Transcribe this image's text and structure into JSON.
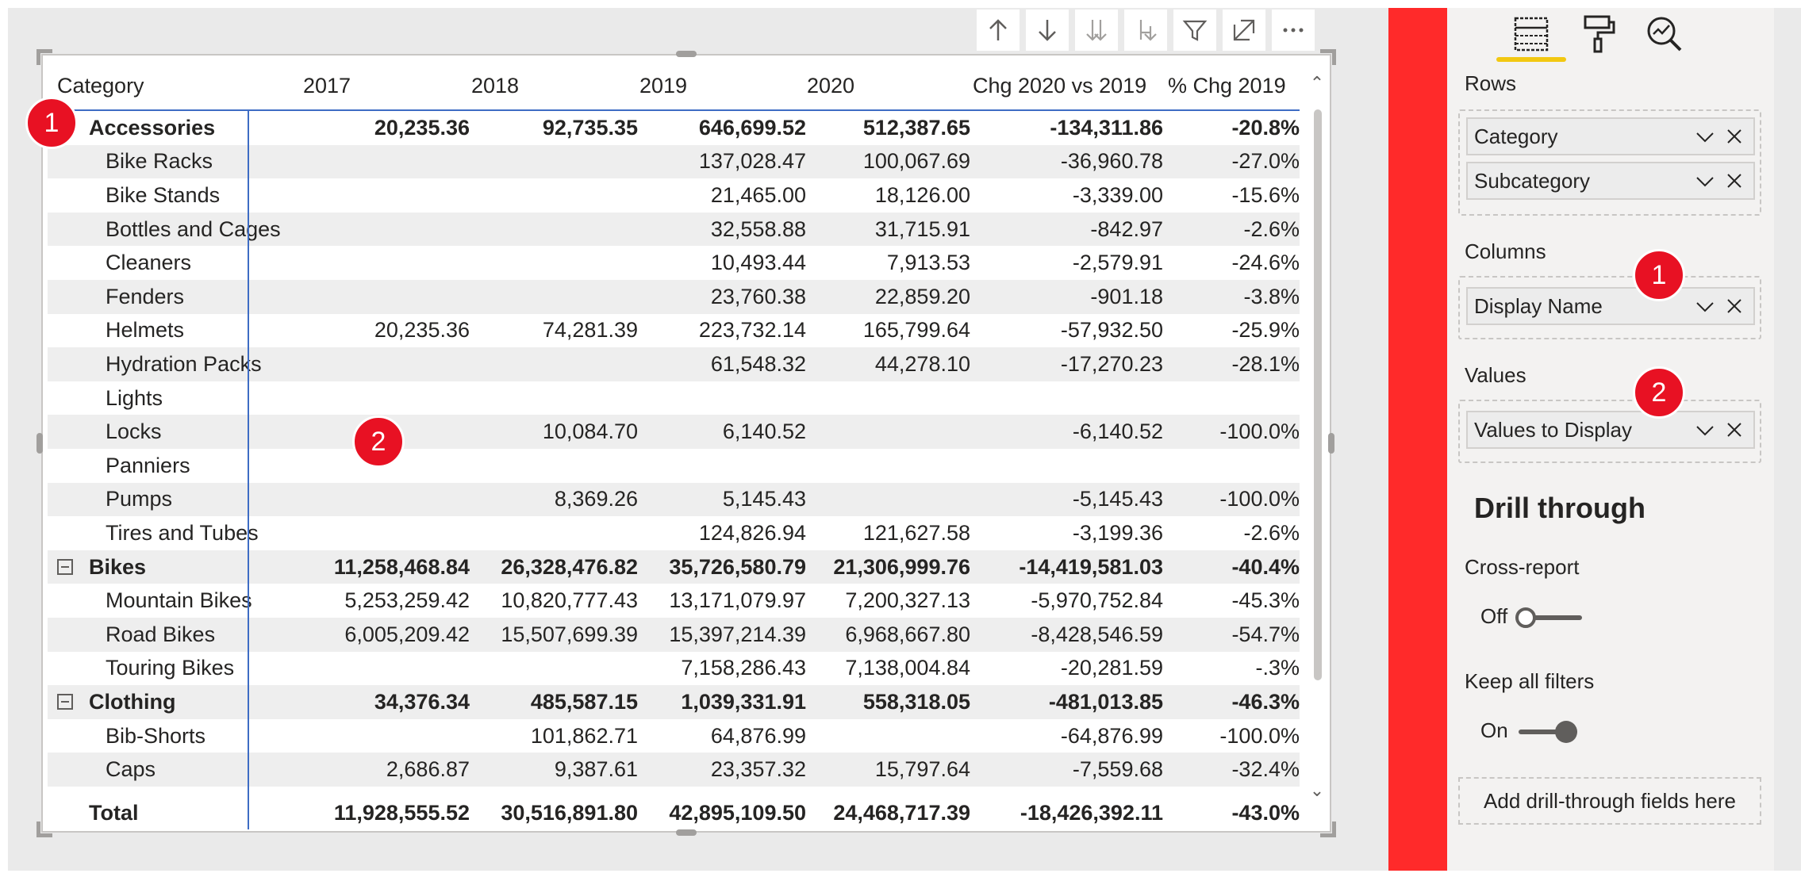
{
  "toolbar": {
    "icons": [
      "arrow-up-icon",
      "arrow-down-icon",
      "double-arrow-down-icon",
      "expand-all-down-icon",
      "filter-icon",
      "focus-mode-icon",
      "more-options-icon"
    ]
  },
  "table": {
    "headers": [
      "Category",
      "2017",
      "2018",
      "2019",
      "2020",
      "Chg 2020 vs 2019",
      "% Chg 2019"
    ],
    "rows": [
      {
        "label": "Accessories",
        "level": 0,
        "bold": true,
        "expander": false,
        "values": [
          "20,235.36",
          "92,735.35",
          "646,699.52",
          "512,387.65",
          "-134,311.86",
          "-20.8%"
        ]
      },
      {
        "label": "Bike Racks",
        "level": 1,
        "bold": false,
        "values": [
          "",
          "",
          "137,028.47",
          "100,067.69",
          "-36,960.78",
          "-27.0%"
        ]
      },
      {
        "label": "Bike Stands",
        "level": 1,
        "bold": false,
        "values": [
          "",
          "",
          "21,465.00",
          "18,126.00",
          "-3,339.00",
          "-15.6%"
        ]
      },
      {
        "label": "Bottles and Cages",
        "level": 1,
        "bold": false,
        "values": [
          "",
          "",
          "32,558.88",
          "31,715.91",
          "-842.97",
          "-2.6%"
        ]
      },
      {
        "label": "Cleaners",
        "level": 1,
        "bold": false,
        "values": [
          "",
          "",
          "10,493.44",
          "7,913.53",
          "-2,579.91",
          "-24.6%"
        ]
      },
      {
        "label": "Fenders",
        "level": 1,
        "bold": false,
        "values": [
          "",
          "",
          "23,760.38",
          "22,859.20",
          "-901.18",
          "-3.8%"
        ]
      },
      {
        "label": "Helmets",
        "level": 1,
        "bold": false,
        "values": [
          "20,235.36",
          "74,281.39",
          "223,732.14",
          "165,799.64",
          "-57,932.50",
          "-25.9%"
        ]
      },
      {
        "label": "Hydration Packs",
        "level": 1,
        "bold": false,
        "values": [
          "",
          "",
          "61,548.32",
          "44,278.10",
          "-17,270.23",
          "-28.1%"
        ]
      },
      {
        "label": "Lights",
        "level": 1,
        "bold": false,
        "values": [
          "",
          "",
          "",
          "",
          "",
          ""
        ]
      },
      {
        "label": "Locks",
        "level": 1,
        "bold": false,
        "values": [
          "",
          "10,084.70",
          "6,140.52",
          "",
          "-6,140.52",
          "-100.0%"
        ]
      },
      {
        "label": "Panniers",
        "level": 1,
        "bold": false,
        "values": [
          "",
          "",
          "",
          "",
          "",
          ""
        ]
      },
      {
        "label": "Pumps",
        "level": 1,
        "bold": false,
        "values": [
          "",
          "8,369.26",
          "5,145.43",
          "",
          "-5,145.43",
          "-100.0%"
        ]
      },
      {
        "label": "Tires and Tubes",
        "level": 1,
        "bold": false,
        "values": [
          "",
          "",
          "124,826.94",
          "121,627.58",
          "-3,199.36",
          "-2.6%"
        ]
      },
      {
        "label": "Bikes",
        "level": 0,
        "bold": true,
        "expander": true,
        "values": [
          "11,258,468.84",
          "26,328,476.82",
          "35,726,580.79",
          "21,306,999.76",
          "-14,419,581.03",
          "-40.4%"
        ]
      },
      {
        "label": "Mountain Bikes",
        "level": 1,
        "bold": false,
        "values": [
          "5,253,259.42",
          "10,820,777.43",
          "13,171,079.97",
          "7,200,327.13",
          "-5,970,752.84",
          "-45.3%"
        ]
      },
      {
        "label": "Road Bikes",
        "level": 1,
        "bold": false,
        "values": [
          "6,005,209.42",
          "15,507,699.39",
          "15,397,214.39",
          "6,968,667.80",
          "-8,428,546.59",
          "-54.7%"
        ]
      },
      {
        "label": "Touring Bikes",
        "level": 1,
        "bold": false,
        "values": [
          "",
          "",
          "7,158,286.43",
          "7,138,004.84",
          "-20,281.59",
          "-.3%"
        ]
      },
      {
        "label": "Clothing",
        "level": 0,
        "bold": true,
        "expander": true,
        "values": [
          "34,376.34",
          "485,587.15",
          "1,039,331.91",
          "558,318.05",
          "-481,013.85",
          "-46.3%"
        ]
      },
      {
        "label": "Bib-Shorts",
        "level": 1,
        "bold": false,
        "values": [
          "",
          "101,862.71",
          "64,876.99",
          "",
          "-64,876.99",
          "-100.0%"
        ]
      },
      {
        "label": "Caps",
        "level": 1,
        "bold": false,
        "values": [
          "2,686.87",
          "9,387.61",
          "23,357.32",
          "15,797.64",
          "-7,559.68",
          "-32.4%"
        ]
      }
    ],
    "total": {
      "label": "Total",
      "values": [
        "11,928,555.52",
        "30,516,891.80",
        "42,895,109.50",
        "24,468,717.39",
        "-18,426,392.11",
        "-43.0%"
      ]
    }
  },
  "badges": {
    "b1": "1",
    "b2": "2",
    "b3": "1",
    "b4": "2"
  },
  "pane": {
    "tabs": [
      "fields-icon",
      "format-paintbrush-icon",
      "analytics-icon"
    ],
    "rows_label": "Rows",
    "rows_fields": [
      "Category",
      "Subcategory"
    ],
    "columns_label": "Columns",
    "columns_fields": [
      "Display Name"
    ],
    "values_label": "Values",
    "values_fields": [
      "Values to Display"
    ],
    "drill_title": "Drill through",
    "cross_report_label": "Cross-report",
    "cross_report_state": "Off",
    "keep_filters_label": "Keep all filters",
    "keep_filters_state": "On",
    "add_drill_text": "Add drill-through fields here"
  },
  "colors": {
    "accent": "#3e6cc4",
    "badge": "#e81123",
    "red_bar": "#ff2a2a",
    "tab_underline": "#f2c811"
  }
}
